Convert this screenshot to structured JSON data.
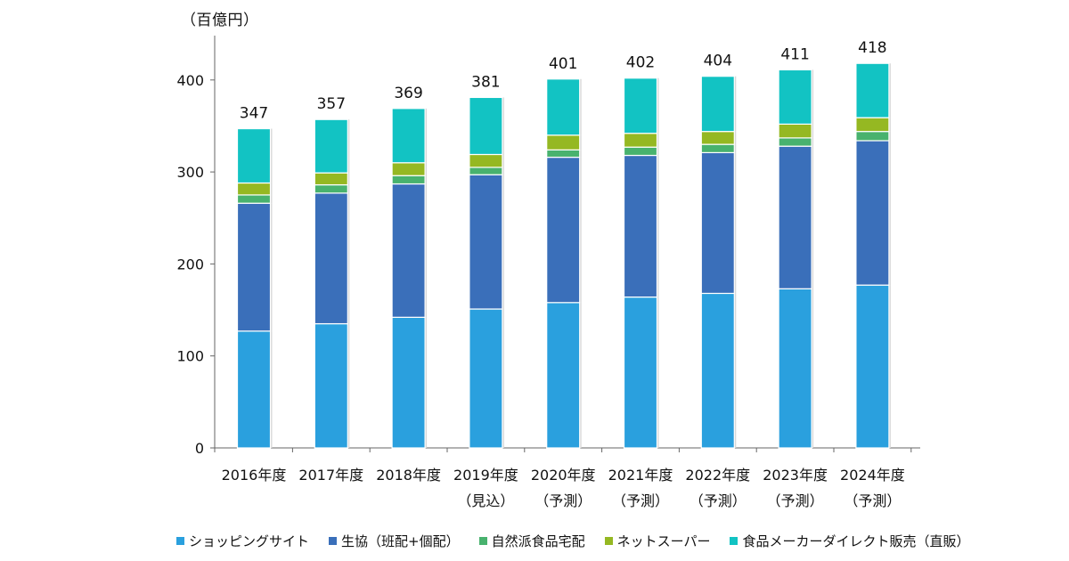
{
  "chart_data": {
    "type": "bar",
    "stacked": true,
    "unit_label": "（百億円）",
    "categories": [
      {
        "year": "2016年度",
        "note": ""
      },
      {
        "year": "2017年度",
        "note": ""
      },
      {
        "year": "2018年度",
        "note": ""
      },
      {
        "year": "2019年度",
        "note": "（見込）"
      },
      {
        "year": "2020年度",
        "note": "（予測）"
      },
      {
        "year": "2021年度",
        "note": "（予測）"
      },
      {
        "year": "2022年度",
        "note": "（予測）"
      },
      {
        "year": "2023年度",
        "note": "（予測）"
      },
      {
        "year": "2024年度",
        "note": "（予測）"
      }
    ],
    "series": [
      {
        "name": "ショッピングサイト",
        "color": "#2AA0DE",
        "values": [
          127,
          135,
          142,
          151,
          158,
          164,
          168,
          173,
          177
        ]
      },
      {
        "name": "生協（班配+個配）",
        "color": "#3A6FBA",
        "values": [
          139,
          142,
          145,
          146,
          158,
          154,
          153,
          155,
          157
        ]
      },
      {
        "name": "自然派食品宅配",
        "color": "#48B26E",
        "values": [
          9,
          9,
          9,
          8,
          8,
          9,
          9,
          9,
          10
        ]
      },
      {
        "name": "ネットスーパー",
        "color": "#95B822",
        "values": [
          13,
          13,
          14,
          14,
          16,
          15,
          14,
          15,
          15
        ]
      },
      {
        "name": "食品メーカーダイレクト販売（直販）",
        "color": "#12C3C3",
        "values": [
          59,
          58,
          59,
          62,
          61,
          60,
          60,
          59,
          59
        ]
      }
    ],
    "totals": [
      347,
      357,
      369,
      381,
      401,
      402,
      404,
      411,
      418
    ],
    "yticks": [
      0,
      100,
      200,
      300,
      400
    ],
    "ylim": [
      0,
      450
    ],
    "title": "",
    "xlabel": "",
    "ylabel": "（百億円）",
    "grid": false,
    "legend_position": "bottom"
  }
}
